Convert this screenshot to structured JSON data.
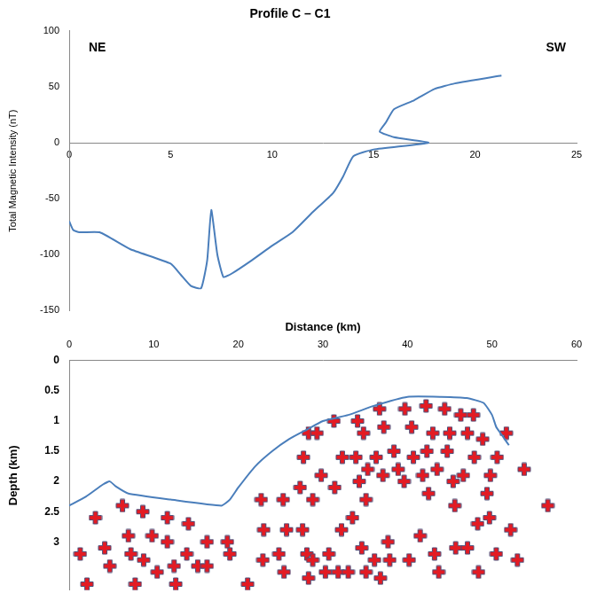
{
  "chart_data": [
    {
      "type": "line",
      "title": "Profile C – C1",
      "annotations": [
        "NE",
        "SW"
      ],
      "y_label": "Total Magnetic Intensity (nT)",
      "xlim": [
        0,
        25
      ],
      "xticks": [
        0,
        5,
        10,
        15,
        20,
        25
      ],
      "ylim": [
        -150,
        100
      ],
      "yticks": [
        -150,
        -100,
        -50,
        0,
        50,
        100
      ],
      "grid": false,
      "series": [
        {
          "color": "#4a7ebb",
          "marker": "none",
          "line_style": "solid",
          "x": [
            0,
            0.2,
            0.5,
            1.5,
            3,
            5,
            5.5,
            6,
            6.5,
            6.8,
            7,
            7.3,
            7.6,
            8,
            9,
            10,
            11,
            12,
            13,
            13.5,
            14,
            15,
            17.7,
            16,
            15.3,
            15.6,
            16,
            17,
            18,
            19,
            21.3
          ],
          "values": [
            -70,
            -78,
            -80,
            -80,
            -95,
            -108,
            -118,
            -128,
            -130,
            -105,
            -60,
            -100,
            -120,
            -117,
            -105,
            -92,
            -80,
            -62,
            -45,
            -30,
            -12,
            -6,
            0,
            5,
            10,
            18,
            30,
            38,
            48,
            53,
            60
          ]
        }
      ]
    },
    {
      "type": "scatter",
      "x_label": "Distance (km)",
      "y_label": "Depth (km)",
      "xlim": [
        0,
        60
      ],
      "xticks": [
        0,
        10,
        20,
        30,
        40,
        50,
        60
      ],
      "ylim": [
        0,
        3.8
      ],
      "yticks": [
        0,
        0.5,
        1,
        1.5,
        2,
        2.5,
        3
      ],
      "grid": false,
      "series": [
        {
          "type": "line",
          "color": "#4a7ebb",
          "marker": "none",
          "line_style": "solid",
          "x": [
            0,
            2,
            4,
            4.8,
            5.5,
            7,
            12,
            18,
            19,
            20,
            22,
            24,
            26,
            28,
            30,
            33,
            36,
            40,
            44,
            47,
            49,
            50,
            50.5,
            51,
            51.5,
            52
          ],
          "values": [
            2.4,
            2.25,
            2.05,
            2.0,
            2.08,
            2.2,
            2.3,
            2.4,
            2.3,
            2.1,
            1.75,
            1.5,
            1.3,
            1.15,
            1.0,
            0.9,
            0.75,
            0.6,
            0.6,
            0.62,
            0.7,
            0.9,
            1.1,
            1.2,
            1.3,
            1.4
          ]
        },
        {
          "type": "scatter",
          "color": "#e31b23",
          "marker": "cross",
          "x": [
            3.1,
            6.3,
            8.7,
            11.6,
            14.1,
            1.3,
            2.1,
            4.2,
            4.8,
            7.0,
            7.3,
            8.8,
            7.8,
            9.8,
            10.4,
            11.6,
            12.4,
            12.6,
            13.9,
            15.2,
            16.3,
            16.3,
            18.7,
            19.0,
            21.1,
            23.0,
            22.9,
            24.8,
            25.4,
            25.7,
            27.6,
            28.1,
            28.3,
            28.8,
            30.3,
            30.7,
            31.8,
            32.2,
            33.5,
            33.0,
            34.6,
            35.1,
            36.1,
            36.8,
            37.7,
            37.9,
            40.2,
            41.5,
            43.2,
            43.7,
            45.7,
            47.1,
            48.4,
            48.3,
            49.7,
            50.5,
            52.2,
            53.0,
            22.7,
            25.3,
            27.7,
            28.3,
            29.3,
            31.3,
            34.1,
            34.8,
            36.7,
            37.2,
            39.7,
            40.5,
            42.2,
            44.4,
            46.3,
            27.3,
            28.8,
            29.8,
            31.4,
            32.3,
            33.9,
            34.3,
            35.1,
            35.3,
            36.3,
            37.1,
            38.4,
            38.9,
            39.6,
            40.7,
            41.8,
            42.3,
            42.5,
            43.0,
            43.5,
            44.7,
            45.0,
            45.4,
            45.6,
            46.6,
            47.1,
            47.9,
            48.9,
            49.4,
            49.8,
            50.6,
            47.8,
            51.7,
            53.8,
            56.6
          ],
          "values": [
            2.6,
            2.4,
            2.5,
            2.6,
            2.7,
            3.2,
            3.7,
            3.1,
            3.4,
            2.9,
            3.2,
            3.3,
            3.7,
            2.9,
            3.5,
            3.0,
            3.4,
            3.7,
            3.2,
            3.4,
            3.4,
            3.0,
            3.0,
            3.2,
            3.7,
            2.8,
            3.3,
            3.2,
            3.5,
            2.8,
            2.8,
            3.2,
            3.6,
            3.3,
            3.5,
            3.2,
            3.5,
            2.8,
            2.6,
            3.5,
            3.1,
            3.5,
            3.3,
            3.6,
            3.0,
            3.3,
            3.3,
            2.9,
            3.2,
            3.5,
            3.1,
            3.1,
            3.5,
            2.7,
            2.6,
            3.2,
            2.8,
            3.3,
            2.3,
            2.3,
            1.6,
            1.2,
            1.2,
            1.0,
            1.0,
            1.2,
            0.8,
            1.1,
            0.8,
            1.1,
            0.75,
            0.8,
            0.9,
            2.1,
            2.3,
            1.9,
            2.1,
            1.6,
            1.6,
            2.0,
            2.3,
            1.8,
            1.6,
            1.9,
            1.5,
            1.8,
            2.0,
            1.6,
            1.9,
            1.5,
            2.2,
            1.2,
            1.8,
            1.5,
            1.2,
            2.0,
            2.4,
            1.9,
            1.2,
            1.6,
            1.3,
            2.2,
            1.9,
            1.6,
            0.9,
            1.2,
            1.8,
            2.4
          ]
        }
      ]
    }
  ]
}
